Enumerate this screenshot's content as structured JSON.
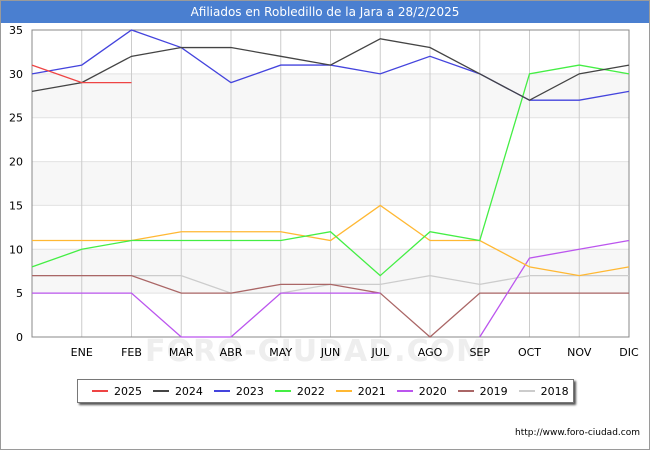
{
  "header": {
    "title": "Afiliados en Robledillo de la Jara a 28/2/2025"
  },
  "footer": {
    "source": "http://www.foro-ciudad.com",
    "watermark": "FORO-CIUDAD.COM"
  },
  "chart_data": {
    "type": "line",
    "title": "Afiliados en Robledillo de la Jara a 28/2/2025",
    "categories": [
      "",
      "ENE",
      "FEB",
      "MAR",
      "ABR",
      "MAY",
      "JUN",
      "JUL",
      "AGO",
      "SEP",
      "OCT",
      "NOV",
      "DIC"
    ],
    "ylim": [
      0,
      35
    ],
    "yticks": [
      0,
      5,
      10,
      15,
      20,
      25,
      30,
      35
    ],
    "grid": true,
    "legend_position": "bottom",
    "series": [
      {
        "name": "2025",
        "color": "#ee4444",
        "values": [
          31,
          29,
          29,
          null,
          null,
          null,
          null,
          null,
          null,
          null,
          null,
          null,
          null
        ]
      },
      {
        "name": "2024",
        "color": "#444444",
        "values": [
          28,
          29,
          32,
          33,
          33,
          32,
          31,
          34,
          33,
          30,
          27,
          30,
          31
        ]
      },
      {
        "name": "2023",
        "color": "#4444dd",
        "values": [
          30,
          31,
          35,
          33,
          29,
          31,
          31,
          30,
          32,
          30,
          27,
          27,
          28
        ]
      },
      {
        "name": "2022",
        "color": "#44ee44",
        "values": [
          8,
          10,
          11,
          11,
          11,
          11,
          12,
          7,
          12,
          11,
          30,
          31,
          30
        ]
      },
      {
        "name": "2021",
        "color": "#ffb833",
        "values": [
          11,
          11,
          11,
          12,
          12,
          12,
          11,
          15,
          11,
          11,
          8,
          7,
          8
        ]
      },
      {
        "name": "2020",
        "color": "#bb55ee",
        "values": [
          5,
          5,
          5,
          0,
          0,
          5,
          5,
          5,
          null,
          0,
          9,
          10,
          11
        ]
      },
      {
        "name": "2019",
        "color": "#aa6666",
        "values": [
          7,
          7,
          7,
          5,
          5,
          6,
          6,
          5,
          0,
          5,
          5,
          5,
          5
        ]
      },
      {
        "name": "2018",
        "color": "#cccccc",
        "values": [
          7,
          7,
          7,
          7,
          5,
          5,
          6,
          6,
          7,
          6,
          7,
          7,
          7
        ]
      }
    ]
  }
}
